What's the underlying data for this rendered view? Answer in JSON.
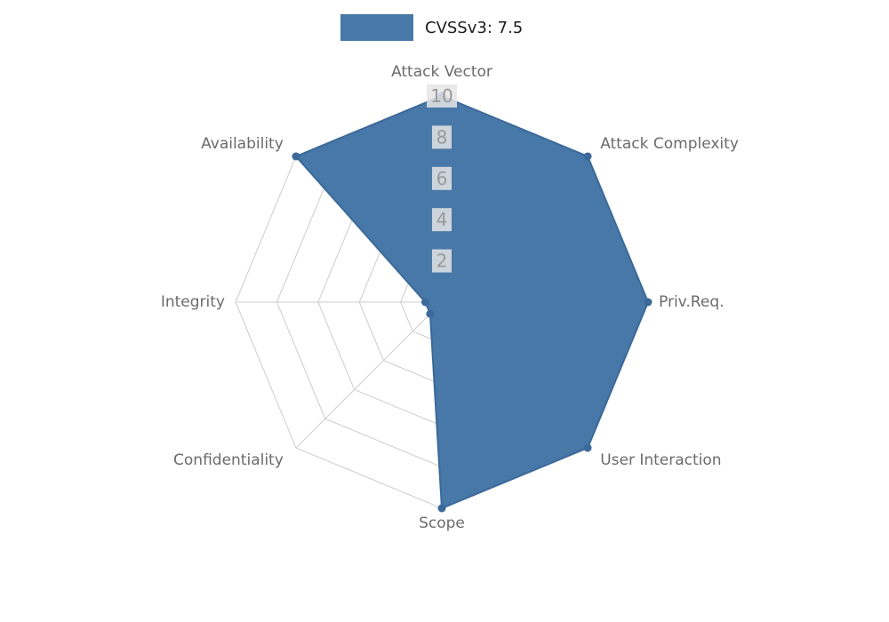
{
  "legend": {
    "label": "CVSSv3: 7.5"
  },
  "chart_data": {
    "type": "radar",
    "title": "",
    "categories": [
      "Attack Vector",
      "Attack Complexity",
      "Priv.Req.",
      "User Interaction",
      "Scope",
      "Confidentiality",
      "Integrity",
      "Availability"
    ],
    "series": [
      {
        "name": "CVSSv3: 7.5",
        "values": [
          10,
          10,
          10,
          10,
          10,
          0.8,
          0.8,
          10
        ],
        "fill_color": "#4878a8",
        "edge_color": "#3b6999"
      }
    ],
    "rlim": [
      0,
      10
    ],
    "ticks": [
      2,
      4,
      6,
      8,
      10
    ],
    "grid": true,
    "grid_shape": "polygon",
    "grid_color": "#cccccc",
    "tick_label_color": "#999999",
    "tick_label_bg": "#e5e5e5",
    "axis_label_color": "#6b6b6b",
    "legend_position": "top-center",
    "background_color": "#ffffff"
  }
}
